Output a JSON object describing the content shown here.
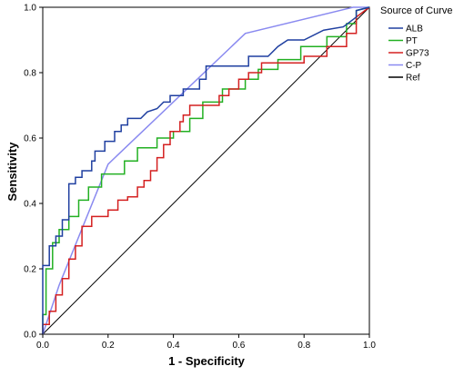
{
  "chart_data": {
    "type": "line",
    "title": "",
    "xlabel": "1 - Specificity",
    "ylabel": "Sensitivity",
    "xlim": [
      0,
      1
    ],
    "ylim": [
      0,
      1
    ],
    "xticks": [
      "0.0",
      "0.2",
      "0.4",
      "0.6",
      "0.8",
      "1.0"
    ],
    "yticks": [
      "0.0",
      "0.2",
      "0.4",
      "0.6",
      "0.8",
      "1.0"
    ],
    "grid": false,
    "legend": {
      "title": "Source of Curve",
      "position": "right"
    },
    "series": [
      {
        "name": "ALB",
        "color": "#1f3fa0",
        "points": [
          [
            0,
            0
          ],
          [
            0,
            0.21
          ],
          [
            0.02,
            0.21
          ],
          [
            0.02,
            0.27
          ],
          [
            0.04,
            0.27
          ],
          [
            0.04,
            0.3
          ],
          [
            0.06,
            0.3
          ],
          [
            0.06,
            0.35
          ],
          [
            0.08,
            0.35
          ],
          [
            0.08,
            0.46
          ],
          [
            0.1,
            0.46
          ],
          [
            0.1,
            0.48
          ],
          [
            0.12,
            0.48
          ],
          [
            0.12,
            0.5
          ],
          [
            0.15,
            0.5
          ],
          [
            0.15,
            0.53
          ],
          [
            0.16,
            0.53
          ],
          [
            0.16,
            0.56
          ],
          [
            0.19,
            0.56
          ],
          [
            0.19,
            0.59
          ],
          [
            0.22,
            0.59
          ],
          [
            0.22,
            0.62
          ],
          [
            0.24,
            0.62
          ],
          [
            0.24,
            0.64
          ],
          [
            0.26,
            0.64
          ],
          [
            0.26,
            0.66
          ],
          [
            0.3,
            0.66
          ],
          [
            0.32,
            0.68
          ],
          [
            0.35,
            0.69
          ],
          [
            0.37,
            0.71
          ],
          [
            0.39,
            0.71
          ],
          [
            0.39,
            0.73
          ],
          [
            0.43,
            0.73
          ],
          [
            0.43,
            0.75
          ],
          [
            0.48,
            0.75
          ],
          [
            0.48,
            0.78
          ],
          [
            0.5,
            0.78
          ],
          [
            0.5,
            0.82
          ],
          [
            0.63,
            0.82
          ],
          [
            0.63,
            0.85
          ],
          [
            0.69,
            0.85
          ],
          [
            0.72,
            0.88
          ],
          [
            0.75,
            0.9
          ],
          [
            0.8,
            0.9
          ],
          [
            0.86,
            0.93
          ],
          [
            0.92,
            0.94
          ],
          [
            0.96,
            0.97
          ],
          [
            0.96,
            0.99
          ],
          [
            1,
            1
          ]
        ]
      },
      {
        "name": "PT",
        "color": "#22b022",
        "points": [
          [
            0,
            0
          ],
          [
            0,
            0.06
          ],
          [
            0.01,
            0.06
          ],
          [
            0.01,
            0.2
          ],
          [
            0.03,
            0.2
          ],
          [
            0.03,
            0.28
          ],
          [
            0.05,
            0.28
          ],
          [
            0.05,
            0.32
          ],
          [
            0.08,
            0.32
          ],
          [
            0.08,
            0.36
          ],
          [
            0.11,
            0.36
          ],
          [
            0.11,
            0.41
          ],
          [
            0.14,
            0.41
          ],
          [
            0.14,
            0.45
          ],
          [
            0.18,
            0.45
          ],
          [
            0.18,
            0.49
          ],
          [
            0.25,
            0.49
          ],
          [
            0.25,
            0.53
          ],
          [
            0.29,
            0.53
          ],
          [
            0.29,
            0.57
          ],
          [
            0.35,
            0.57
          ],
          [
            0.35,
            0.6
          ],
          [
            0.4,
            0.6
          ],
          [
            0.4,
            0.62
          ],
          [
            0.45,
            0.62
          ],
          [
            0.45,
            0.66
          ],
          [
            0.49,
            0.66
          ],
          [
            0.49,
            0.71
          ],
          [
            0.55,
            0.71
          ],
          [
            0.55,
            0.75
          ],
          [
            0.62,
            0.75
          ],
          [
            0.62,
            0.78
          ],
          [
            0.66,
            0.78
          ],
          [
            0.66,
            0.81
          ],
          [
            0.72,
            0.81
          ],
          [
            0.72,
            0.84
          ],
          [
            0.79,
            0.84
          ],
          [
            0.79,
            0.88
          ],
          [
            0.87,
            0.88
          ],
          [
            0.87,
            0.91
          ],
          [
            0.93,
            0.91
          ],
          [
            0.93,
            0.95
          ],
          [
            0.96,
            0.95
          ],
          [
            0.96,
            0.99
          ],
          [
            1,
            1
          ]
        ]
      },
      {
        "name": "GP73",
        "color": "#d42020",
        "points": [
          [
            0,
            0
          ],
          [
            0,
            0.03
          ],
          [
            0.02,
            0.03
          ],
          [
            0.02,
            0.07
          ],
          [
            0.04,
            0.07
          ],
          [
            0.04,
            0.12
          ],
          [
            0.06,
            0.12
          ],
          [
            0.06,
            0.17
          ],
          [
            0.08,
            0.17
          ],
          [
            0.08,
            0.23
          ],
          [
            0.1,
            0.23
          ],
          [
            0.1,
            0.27
          ],
          [
            0.12,
            0.27
          ],
          [
            0.12,
            0.33
          ],
          [
            0.15,
            0.33
          ],
          [
            0.15,
            0.36
          ],
          [
            0.2,
            0.36
          ],
          [
            0.2,
            0.38
          ],
          [
            0.23,
            0.38
          ],
          [
            0.23,
            0.41
          ],
          [
            0.26,
            0.41
          ],
          [
            0.26,
            0.42
          ],
          [
            0.29,
            0.42
          ],
          [
            0.29,
            0.45
          ],
          [
            0.31,
            0.45
          ],
          [
            0.31,
            0.47
          ],
          [
            0.33,
            0.47
          ],
          [
            0.33,
            0.5
          ],
          [
            0.35,
            0.5
          ],
          [
            0.35,
            0.54
          ],
          [
            0.37,
            0.54
          ],
          [
            0.37,
            0.58
          ],
          [
            0.39,
            0.58
          ],
          [
            0.39,
            0.62
          ],
          [
            0.42,
            0.62
          ],
          [
            0.42,
            0.65
          ],
          [
            0.43,
            0.65
          ],
          [
            0.43,
            0.67
          ],
          [
            0.45,
            0.67
          ],
          [
            0.45,
            0.7
          ],
          [
            0.54,
            0.7
          ],
          [
            0.54,
            0.73
          ],
          [
            0.57,
            0.73
          ],
          [
            0.57,
            0.75
          ],
          [
            0.6,
            0.75
          ],
          [
            0.6,
            0.78
          ],
          [
            0.63,
            0.78
          ],
          [
            0.63,
            0.8
          ],
          [
            0.67,
            0.8
          ],
          [
            0.67,
            0.83
          ],
          [
            0.8,
            0.83
          ],
          [
            0.8,
            0.85
          ],
          [
            0.87,
            0.85
          ],
          [
            0.87,
            0.88
          ],
          [
            0.93,
            0.88
          ],
          [
            0.93,
            0.92
          ],
          [
            0.96,
            0.92
          ],
          [
            0.96,
            0.97
          ],
          [
            1,
            1
          ]
        ]
      },
      {
        "name": "C-P",
        "color": "#8a8af0",
        "points": [
          [
            0,
            0
          ],
          [
            0.05,
            0.15
          ],
          [
            0.2,
            0.52
          ],
          [
            0.62,
            0.92
          ],
          [
            0.95,
            1
          ],
          [
            1,
            1
          ]
        ]
      },
      {
        "name": "Ref",
        "color": "#000000",
        "points": [
          [
            0,
            0
          ],
          [
            1,
            1
          ]
        ]
      }
    ]
  }
}
